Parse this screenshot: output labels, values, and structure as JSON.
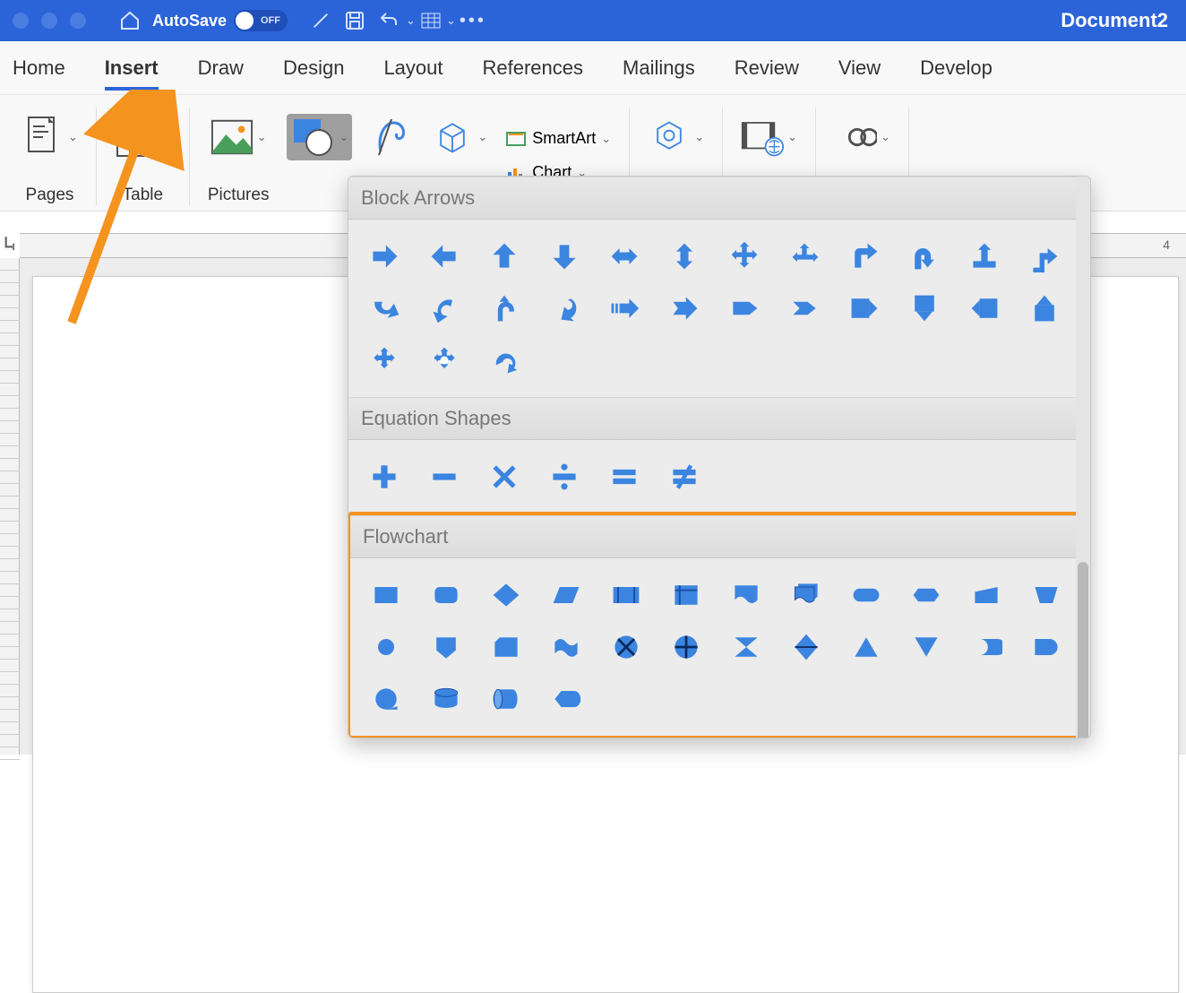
{
  "titlebar": {
    "autosave_label": "AutoSave",
    "toggle_state": "OFF",
    "doc_title": "Document2"
  },
  "tabs": [
    "Home",
    "Insert",
    "Draw",
    "Design",
    "Layout",
    "References",
    "Mailings",
    "Review",
    "View",
    "Develop"
  ],
  "active_tab": "Insert",
  "ribbon": {
    "pages": "Pages",
    "table": "Table",
    "pictures": "Pictures",
    "smartart": "SmartArt",
    "chart": "Chart"
  },
  "ruler": {
    "h_label": "4"
  },
  "dropdown": {
    "sections": [
      {
        "title": "Block Arrows",
        "shapes": [
          "arrow-right",
          "arrow-left",
          "arrow-up",
          "arrow-down",
          "arrow-lr",
          "arrow-ud",
          "arrow-quad",
          "arrow-tri",
          "bent-right",
          "u-turn-r",
          "lr-up",
          "corner-up",
          "curve-d",
          "curve-l",
          "curve-u",
          "curve-back",
          "striped-r",
          "notched-r",
          "pentagon-r",
          "chevron-r",
          "callout-r",
          "callout-d",
          "callout-l",
          "callout-u",
          "quad-callout",
          "round-quad",
          "circ-arrow"
        ]
      },
      {
        "title": "Equation Shapes",
        "shapes": [
          "plus",
          "minus",
          "multiply",
          "divide",
          "equal",
          "not-equal"
        ]
      },
      {
        "title": "Flowchart",
        "highlighted": true,
        "shapes": [
          "process",
          "alt-process",
          "decision",
          "data",
          "predefined",
          "internal-storage",
          "document",
          "multidoc",
          "terminator",
          "preparation",
          "manual-input",
          "manual-op",
          "connector",
          "offpage",
          "card",
          "punched-tape",
          "summing",
          "or",
          "collate",
          "sort",
          "extract",
          "merge",
          "stored-data",
          "delay",
          "seq-access",
          "magnetic-disk",
          "direct-access",
          "display"
        ]
      }
    ]
  },
  "colors": {
    "brand": "#2b63d9",
    "shape": "#3b85e0",
    "highlight": "#f5931f"
  }
}
